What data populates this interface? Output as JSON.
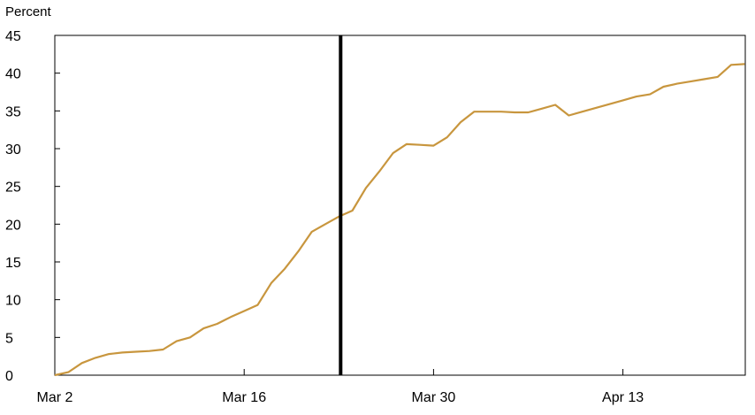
{
  "chart_data": {
    "type": "line",
    "title": "",
    "ylabel": "Percent",
    "xlabel": "",
    "ylim": [
      0,
      45
    ],
    "yticks": [
      0,
      5,
      10,
      15,
      20,
      25,
      30,
      35,
      40,
      45
    ],
    "xlim": [
      "2020-03-02",
      "2020-04-21"
    ],
    "xticks": [
      {
        "date": "2020-03-02",
        "label": "Mar 2"
      },
      {
        "date": "2020-03-16",
        "label": "Mar 16"
      },
      {
        "date": "2020-03-30",
        "label": "Mar 30"
      },
      {
        "date": "2020-04-13",
        "label": "Apr 13"
      }
    ],
    "grid": false,
    "vertical_marker": {
      "date": "2020-03-23"
    },
    "series": [
      {
        "color": "#c8963e",
        "points": [
          [
            "2020-03-02",
            0.0
          ],
          [
            "2020-03-03",
            0.4
          ],
          [
            "2020-03-04",
            1.6
          ],
          [
            "2020-03-05",
            2.3
          ],
          [
            "2020-03-06",
            2.8
          ],
          [
            "2020-03-07",
            3.0
          ],
          [
            "2020-03-08",
            3.1
          ],
          [
            "2020-03-09",
            3.2
          ],
          [
            "2020-03-10",
            3.4
          ],
          [
            "2020-03-11",
            4.5
          ],
          [
            "2020-03-12",
            5.0
          ],
          [
            "2020-03-13",
            6.2
          ],
          [
            "2020-03-14",
            6.8
          ],
          [
            "2020-03-15",
            7.7
          ],
          [
            "2020-03-16",
            8.5
          ],
          [
            "2020-03-17",
            9.3
          ],
          [
            "2020-03-18",
            12.2
          ],
          [
            "2020-03-19",
            14.1
          ],
          [
            "2020-03-20",
            16.4
          ],
          [
            "2020-03-21",
            19.0
          ],
          [
            "2020-03-22",
            20.0
          ],
          [
            "2020-03-23",
            21.0
          ],
          [
            "2020-03-24",
            21.8
          ],
          [
            "2020-03-25",
            24.8
          ],
          [
            "2020-03-26",
            27.0
          ],
          [
            "2020-03-27",
            29.4
          ],
          [
            "2020-03-28",
            30.6
          ],
          [
            "2020-03-29",
            30.5
          ],
          [
            "2020-03-30",
            30.4
          ],
          [
            "2020-03-31",
            31.5
          ],
          [
            "2020-04-01",
            33.5
          ],
          [
            "2020-04-02",
            34.9
          ],
          [
            "2020-04-03",
            34.9
          ],
          [
            "2020-04-04",
            34.9
          ],
          [
            "2020-04-05",
            34.8
          ],
          [
            "2020-04-06",
            34.8
          ],
          [
            "2020-04-07",
            35.3
          ],
          [
            "2020-04-08",
            35.8
          ],
          [
            "2020-04-09",
            34.4
          ],
          [
            "2020-04-10",
            34.9
          ],
          [
            "2020-04-11",
            35.4
          ],
          [
            "2020-04-12",
            35.9
          ],
          [
            "2020-04-13",
            36.4
          ],
          [
            "2020-04-14",
            36.9
          ],
          [
            "2020-04-15",
            37.2
          ],
          [
            "2020-04-16",
            38.2
          ],
          [
            "2020-04-17",
            38.6
          ],
          [
            "2020-04-18",
            38.9
          ],
          [
            "2020-04-19",
            39.2
          ],
          [
            "2020-04-20",
            39.5
          ],
          [
            "2020-04-21",
            41.1
          ],
          [
            "2020-04-22",
            41.2
          ]
        ]
      }
    ]
  }
}
